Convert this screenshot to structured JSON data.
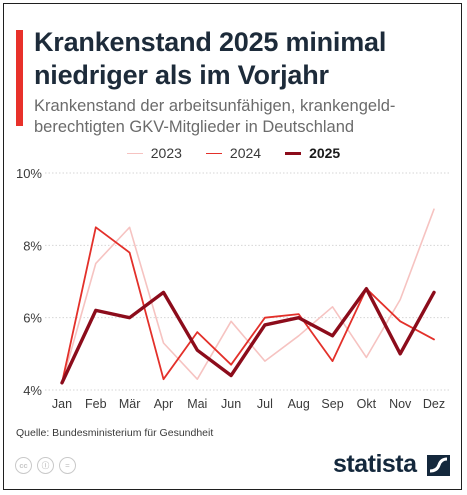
{
  "header": {
    "title": "Krankenstand 2025 minimal niedriger als im Vorjahr",
    "subtitle": "Krankenstand der arbeitsunfähigen, krankengeld-berechtigten GKV-Mitglieder in Deutschland"
  },
  "colors": {
    "accent": "#e8312a",
    "series_2023": "#f6c3c1",
    "series_2024": "#e3302a",
    "series_2025": "#8c0c1b",
    "grid": "#d6d6d6",
    "text": "#1d2b3a"
  },
  "chart_data": {
    "type": "line",
    "categories": [
      "Jan",
      "Feb",
      "Mär",
      "Apr",
      "Mai",
      "Jun",
      "Jul",
      "Aug",
      "Sep",
      "Okt",
      "Nov",
      "Dez"
    ],
    "ylim": [
      4,
      10
    ],
    "yticks": [
      "4%",
      "6%",
      "8%",
      "10%"
    ],
    "ytick_values": [
      4,
      6,
      8,
      10
    ],
    "grid": true,
    "legend_position": "top-center",
    "series": [
      {
        "name": "2023",
        "values": [
          4.2,
          7.5,
          8.5,
          5.3,
          4.3,
          5.9,
          4.8,
          5.5,
          6.3,
          4.9,
          6.5,
          9.0
        ]
      },
      {
        "name": "2024",
        "values": [
          4.2,
          8.5,
          7.8,
          4.3,
          5.6,
          4.7,
          6.0,
          6.1,
          4.8,
          6.8,
          5.9,
          5.4
        ]
      },
      {
        "name": "2025",
        "values": [
          4.2,
          6.2,
          6.0,
          6.7,
          5.1,
          4.4,
          5.8,
          6.0,
          5.5,
          6.8,
          5.0,
          6.7
        ]
      }
    ]
  },
  "footer": {
    "source": "Quelle: Bundesministerium für Gesundheit",
    "brand": "statista",
    "cc_icons": [
      "cc",
      "by",
      "nd"
    ]
  }
}
